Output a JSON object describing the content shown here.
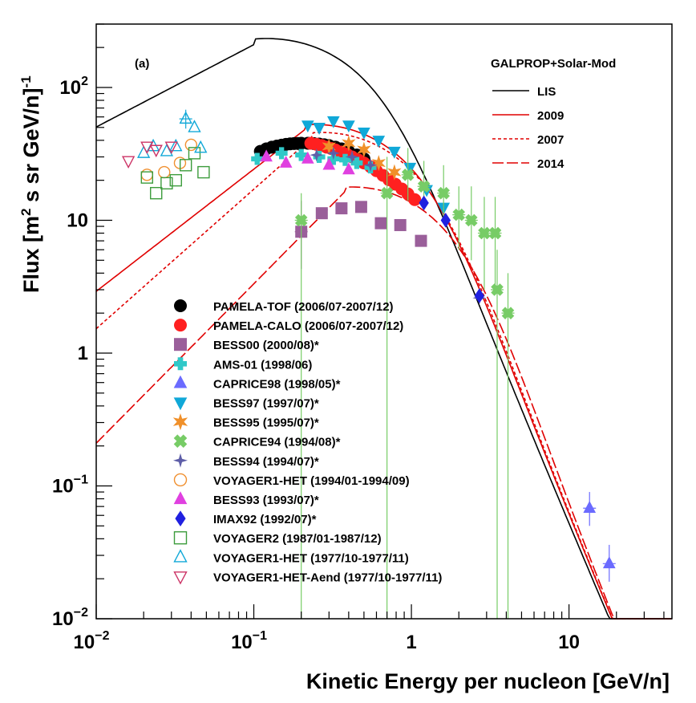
{
  "chart_data": {
    "type": "scatter",
    "title": "",
    "panel_label": "(a)",
    "xlabel": "Kinetic Energy per nucleon [GeV/n]",
    "ylabel": {
      "pre": "Flux [m",
      "sup1": "2",
      "mid": " s sr GeV/n]",
      "sup2": "-1"
    },
    "xscale": "log",
    "yscale": "log",
    "xlim": [
      0.01,
      45
    ],
    "ylim": [
      0.01,
      300
    ],
    "x_ticks": [
      {
        "value": 0.01,
        "base": "10",
        "exp": "−2"
      },
      {
        "value": 0.1,
        "base": "10",
        "exp": "−1"
      },
      {
        "value": 1,
        "base": "1",
        "exp": ""
      },
      {
        "value": 10,
        "base": "10",
        "exp": ""
      }
    ],
    "y_ticks": [
      {
        "value": 0.01,
        "base": "10",
        "exp": "−2"
      },
      {
        "value": 0.1,
        "base": "10",
        "exp": "−1"
      },
      {
        "value": 1,
        "base": "1",
        "exp": ""
      },
      {
        "value": 10,
        "base": "10",
        "exp": ""
      },
      {
        "value": 100,
        "base": "10",
        "exp": "2"
      }
    ],
    "model_legend_title": "GALPROP+Solar-Mod",
    "model_curves": [
      {
        "name": "LIS",
        "color": "#000000",
        "dash": "",
        "params": {
          "peak_x": 0.1,
          "peak_y": 210,
          "low_slope": 0.62,
          "k": 30.8,
          "g": 2.78
        }
      },
      {
        "name": "2009",
        "color": "#e00000",
        "dash": "",
        "params": {
          "peak_x": 0.21,
          "peak_y": 48,
          "low_slope": 0.92,
          "k": 33.5,
          "g": 2.78
        }
      },
      {
        "name": "2007",
        "color": "#e00000",
        "dash": "4,3",
        "params": {
          "peak_x": 0.235,
          "peak_y": 42,
          "low_slope": 1.05,
          "k": 33.5,
          "g": 2.78
        }
      },
      {
        "name": "2014",
        "color": "#e00000",
        "dash": "14,4",
        "params": {
          "peak_x": 0.38,
          "peak_y": 16.5,
          "low_slope": 1.2,
          "k": 33,
          "g": 2.78
        }
      }
    ],
    "series": [
      {
        "name": "PAMELA-TOF (2006/07-2007/12)",
        "marker": "circle",
        "color": "#000000",
        "filled": true,
        "points": [
          {
            "x": 0.11,
            "y": 33
          },
          {
            "x": 0.12,
            "y": 34.5
          },
          {
            "x": 0.13,
            "y": 35.5
          },
          {
            "x": 0.14,
            "y": 36.2
          },
          {
            "x": 0.15,
            "y": 36.8
          },
          {
            "x": 0.16,
            "y": 37.3
          },
          {
            "x": 0.17,
            "y": 37.6
          },
          {
            "x": 0.18,
            "y": 37.8
          },
          {
            "x": 0.19,
            "y": 37.9
          },
          {
            "x": 0.2,
            "y": 38
          },
          {
            "x": 0.22,
            "y": 38
          },
          {
            "x": 0.24,
            "y": 37.8
          },
          {
            "x": 0.26,
            "y": 37.5
          },
          {
            "x": 0.28,
            "y": 37
          },
          {
            "x": 0.3,
            "y": 36.5
          },
          {
            "x": 0.33,
            "y": 35.5
          },
          {
            "x": 0.36,
            "y": 34.5
          },
          {
            "x": 0.4,
            "y": 33
          },
          {
            "x": 0.45,
            "y": 31
          },
          {
            "x": 0.5,
            "y": 29
          }
        ]
      },
      {
        "name": "PAMELA-CALO (2006/07-2007/12)",
        "marker": "circle",
        "color": "#ff2020",
        "filled": true,
        "points": [
          {
            "x": 0.23,
            "y": 38
          },
          {
            "x": 0.25,
            "y": 37.3
          },
          {
            "x": 0.27,
            "y": 36.5
          },
          {
            "x": 0.29,
            "y": 35.5
          },
          {
            "x": 0.31,
            "y": 34.7
          },
          {
            "x": 0.33,
            "y": 33.8
          },
          {
            "x": 0.36,
            "y": 32.6
          },
          {
            "x": 0.39,
            "y": 31.4
          },
          {
            "x": 0.42,
            "y": 30
          },
          {
            "x": 0.46,
            "y": 28.5
          },
          {
            "x": 0.5,
            "y": 27
          },
          {
            "x": 0.55,
            "y": 25.3
          },
          {
            "x": 0.6,
            "y": 23.6
          },
          {
            "x": 0.66,
            "y": 21.8
          },
          {
            "x": 0.72,
            "y": 20.2
          },
          {
            "x": 0.79,
            "y": 18.7
          },
          {
            "x": 0.87,
            "y": 17.2
          },
          {
            "x": 0.95,
            "y": 15.8
          },
          {
            "x": 1.05,
            "y": 14.3
          }
        ]
      },
      {
        "name": "BESS00 (2000/08)*",
        "marker": "square",
        "color": "#9a5f9a",
        "filled": true,
        "points": [
          {
            "x": 0.2,
            "y": 8.2,
            "lo": 4.3,
            "hi": 14
          },
          {
            "x": 0.27,
            "y": 11.3
          },
          {
            "x": 0.36,
            "y": 12.3
          },
          {
            "x": 0.48,
            "y": 12.6
          },
          {
            "x": 0.64,
            "y": 9.5
          },
          {
            "x": 0.85,
            "y": 9.2
          },
          {
            "x": 1.15,
            "y": 7
          }
        ]
      },
      {
        "name": "AMS-01 (1998/06)",
        "marker": "plus",
        "color": "#30c8c8",
        "filled": true,
        "points": [
          {
            "x": 0.105,
            "y": 29
          },
          {
            "x": 0.15,
            "y": 32
          },
          {
            "x": 0.2,
            "y": 31
          },
          {
            "x": 0.26,
            "y": 30
          },
          {
            "x": 0.32,
            "y": 29
          },
          {
            "x": 0.38,
            "y": 28.5
          },
          {
            "x": 0.45,
            "y": 27
          },
          {
            "x": 0.55,
            "y": 25
          }
        ]
      },
      {
        "name": "CAPRICE98 (1998/05)*",
        "marker": "triangle-up",
        "color": "#6b6bff",
        "filled": true,
        "points": [
          {
            "x": 13.5,
            "y": 0.068,
            "lo": 0.05,
            "hi": 0.09
          },
          {
            "x": 18,
            "y": 0.026,
            "lo": 0.019,
            "hi": 0.036
          }
        ]
      },
      {
        "name": "BESS97 (1997/07)*",
        "marker": "triangle-down",
        "color": "#10a8d8",
        "filled": true,
        "points": [
          {
            "x": 0.22,
            "y": 52
          },
          {
            "x": 0.26,
            "y": 50
          },
          {
            "x": 0.32,
            "y": 56
          },
          {
            "x": 0.4,
            "y": 52
          },
          {
            "x": 0.5,
            "y": 46
          },
          {
            "x": 0.62,
            "y": 40
          },
          {
            "x": 0.78,
            "y": 33
          },
          {
            "x": 0.98,
            "y": 25
          },
          {
            "x": 1.25,
            "y": 17
          },
          {
            "x": 1.6,
            "y": 12.5
          }
        ]
      },
      {
        "name": "BESS95 (1995/07)*",
        "marker": "star",
        "color": "#f0902a",
        "filled": true,
        "points": [
          {
            "x": 0.3,
            "y": 36
          },
          {
            "x": 0.4,
            "y": 38
          },
          {
            "x": 0.5,
            "y": 34
          },
          {
            "x": 0.62,
            "y": 27
          },
          {
            "x": 0.78,
            "y": 23
          }
        ]
      },
      {
        "name": "CAPRICE94 (1994/08)*",
        "marker": "x",
        "color": "#77cc66",
        "filled": true,
        "points": [
          {
            "x": 0.2,
            "y": 10,
            "lo": 0.01,
            "hi": 16
          },
          {
            "x": 0.7,
            "y": 16,
            "lo": 0.01,
            "hi": 30
          },
          {
            "x": 0.95,
            "y": 22,
            "lo": 14,
            "hi": 35
          },
          {
            "x": 1.2,
            "y": 18,
            "lo": 12,
            "hi": 28
          },
          {
            "x": 1.6,
            "y": 16,
            "lo": 10,
            "hi": 26
          },
          {
            "x": 2.0,
            "y": 11,
            "lo": 6,
            "hi": 18
          },
          {
            "x": 2.4,
            "y": 10,
            "lo": 5,
            "hi": 18
          },
          {
            "x": 2.9,
            "y": 8,
            "lo": 3,
            "hi": 15
          },
          {
            "x": 3.5,
            "y": 3,
            "lo": 0.01,
            "hi": 6
          },
          {
            "x": 3.4,
            "y": 8,
            "lo": 3,
            "hi": 15
          },
          {
            "x": 4.1,
            "y": 2,
            "lo": 0.01,
            "hi": 4
          }
        ]
      },
      {
        "name": "BESS94 (1994/07)*",
        "marker": "cross-star",
        "color": "#5e5ea8",
        "filled": true,
        "points": [
          {
            "x": 0.25,
            "y": 31
          },
          {
            "x": 0.32,
            "y": 32
          },
          {
            "x": 0.42,
            "y": 30
          },
          {
            "x": 0.55,
            "y": 26
          },
          {
            "x": 2.7,
            "y": 2.6
          }
        ]
      },
      {
        "name": "VOYAGER1-HET (1994/01-1994/09)",
        "marker": "circle",
        "color": "#f09030",
        "filled": false,
        "points": [
          {
            "x": 0.021,
            "y": 22
          },
          {
            "x": 0.027,
            "y": 23
          },
          {
            "x": 0.034,
            "y": 27
          },
          {
            "x": 0.04,
            "y": 37
          }
        ]
      },
      {
        "name": "BESS93 (1993/07)*",
        "marker": "triangle-up",
        "color": "#e040e0",
        "filled": true,
        "points": [
          {
            "x": 0.12,
            "y": 30
          },
          {
            "x": 0.16,
            "y": 27
          },
          {
            "x": 0.22,
            "y": 29
          },
          {
            "x": 0.3,
            "y": 26
          },
          {
            "x": 0.4,
            "y": 24
          }
        ]
      },
      {
        "name": "IMAX92 (1992/07)*",
        "marker": "diamond",
        "color": "#2020e0",
        "filled": true,
        "points": [
          {
            "x": 1.2,
            "y": 13.5
          },
          {
            "x": 1.65,
            "y": 10
          },
          {
            "x": 2.7,
            "y": 2.7
          }
        ]
      },
      {
        "name": "VOYAGER2 (1987/01-1987/12)",
        "marker": "square",
        "color": "#3c9c3c",
        "filled": false,
        "points": [
          {
            "x": 0.021,
            "y": 21
          },
          {
            "x": 0.024,
            "y": 16
          },
          {
            "x": 0.028,
            "y": 19
          },
          {
            "x": 0.032,
            "y": 20
          },
          {
            "x": 0.037,
            "y": 26
          },
          {
            "x": 0.042,
            "y": 32
          },
          {
            "x": 0.048,
            "y": 23
          }
        ]
      },
      {
        "name": "VOYAGER1-HET (1977/10-1977/11)",
        "marker": "triangle-up",
        "color": "#10a8d8",
        "filled": false,
        "points": [
          {
            "x": 0.02,
            "y": 32
          },
          {
            "x": 0.023,
            "y": 36
          },
          {
            "x": 0.028,
            "y": 33
          },
          {
            "x": 0.032,
            "y": 36
          },
          {
            "x": 0.037,
            "y": 58,
            "lo": 49,
            "hi": 68
          },
          {
            "x": 0.042,
            "y": 50
          },
          {
            "x": 0.046,
            "y": 35
          }
        ]
      },
      {
        "name": "VOYAGER1-HET-Aend (1977/10-1977/11)",
        "marker": "triangle-down",
        "color": "#cc3366",
        "filled": false,
        "points": [
          {
            "x": 0.016,
            "y": 28
          },
          {
            "x": 0.021,
            "y": 36
          },
          {
            "x": 0.024,
            "y": 34
          },
          {
            "x": 0.03,
            "y": 36
          }
        ]
      }
    ]
  }
}
